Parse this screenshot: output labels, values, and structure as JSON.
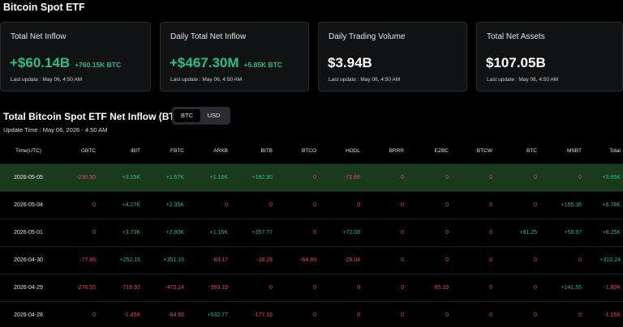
{
  "page_title": "Bitcoin Spot ETF",
  "cards": [
    {
      "title": "Total Net Inflow",
      "value": "+$60.14B",
      "sub": "+760.15K BTC",
      "update": "Last update : May 06, 4:50 AM",
      "positive": true
    },
    {
      "title": "Daily Total Net Inflow",
      "value": "+$467.30M",
      "sub": "+5.85K BTC",
      "update": "Last update : May 06, 4:50 AM",
      "positive": true
    },
    {
      "title": "Daily Trading Volume",
      "value": "$3.94B",
      "sub": "",
      "update": "Last update : May 06, 4:50 AM",
      "positive": false
    },
    {
      "title": "Total Net Assets",
      "value": "$107.05B",
      "sub": "",
      "update": "Last update : May 06, 4:50 AM",
      "positive": false
    }
  ],
  "section_title": "Total Bitcoin Spot ETF Net Inflow (BTC)",
  "toggle": {
    "btc": "BTC",
    "usd": "USD",
    "selected": "BTC"
  },
  "update_time": "Update Time : May 06, 2026 - 4:50 AM",
  "table": {
    "columns": [
      "Time(UTC)",
      "GBTC",
      "IBIT",
      "FBTC",
      "ARKB",
      "BITB",
      "BTCO",
      "HODL",
      "BRRR",
      "EZBC",
      "BTCW",
      "BTC",
      "MSBT",
      "Total"
    ],
    "rows": [
      [
        "2026-05-05",
        "-230.50",
        "+3.15K",
        "+1.67K",
        "+1.16K",
        "+182.90",
        "0",
        "-72.66",
        "0",
        "0",
        "0",
        "0",
        "0",
        "+5.85K"
      ],
      [
        "2026-05-04",
        "0",
        "+4.27K",
        "+2.35K",
        "0",
        "0",
        "0",
        "0",
        "0",
        "0",
        "0",
        "0",
        "+155.36",
        "+6.78K"
      ],
      [
        "2026-05-01",
        "0",
        "+3.73K",
        "+2.80K",
        "+1.16K",
        "+357.77",
        "0",
        "+72.08",
        "0",
        "0",
        "0",
        "+81.25",
        "+58.97",
        "+8.25K"
      ],
      [
        "2026-04-30",
        "-77.89",
        "+252.15",
        "+351.16",
        "-83.17",
        "-38.28",
        "-64.69",
        "-29.04",
        "0",
        "0",
        "0",
        "0",
        "0",
        "+310.24"
      ],
      [
        "2026-04-29",
        "-276.55",
        "-716.92",
        "-473.14",
        "-393.19",
        "0",
        "0",
        "0",
        "0",
        "-85.19",
        "0",
        "0",
        "+141.55",
        "-1.80K"
      ],
      [
        "2026-04-28",
        "0",
        "-1.45K",
        "-64.66",
        "+532.77",
        "-177.16",
        "0",
        "0",
        "0",
        "0",
        "0",
        "0",
        "0",
        "-1.16K"
      ]
    ]
  },
  "colors": {
    "positive": "#2ebd85",
    "negative": "#f0475a",
    "highlight_row": "#1a3a1e",
    "card_bg": "#111214",
    "background": "#000000"
  }
}
